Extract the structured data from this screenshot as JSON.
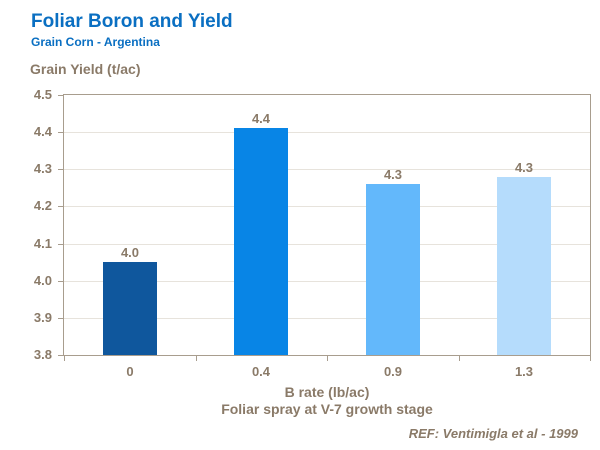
{
  "header": {
    "title": "Foliar Boron and Yield",
    "subtitle": "Grain Corn - Argentina"
  },
  "chart_data": {
    "type": "bar",
    "title": "Foliar Boron and Yield",
    "subtitle": "Grain Corn - Argentina",
    "ylabel": "Grain Yield (t/ac)",
    "xlabel": "B rate (lb/ac)",
    "xlabel_note": "Foliar spray at V-7 growth stage",
    "categories": [
      "0",
      "0.4",
      "0.9",
      "1.3"
    ],
    "values": [
      4.05,
      4.41,
      4.26,
      4.28
    ],
    "value_labels": [
      "4.0",
      "4.4",
      "4.3",
      "4.3"
    ],
    "ylim": [
      3.8,
      4.5
    ],
    "ytick_step": 0.1,
    "yticks": [
      "3.8",
      "3.9",
      "4.0",
      "4.1",
      "4.2",
      "4.3",
      "4.4",
      "4.5"
    ],
    "grid": true,
    "legend": false,
    "bar_colors": [
      "#0f579d",
      "#0885e6",
      "#63b8fb",
      "#b5dcfc"
    ],
    "colors": {
      "title": "#0a6fc2",
      "text": "#8a7a68",
      "axis": "#a89d8e",
      "gridline": "#e7e3dc",
      "background": "#ffffff"
    }
  },
  "footer": {
    "reference": "REF: Ventimigla et al - 1999"
  }
}
